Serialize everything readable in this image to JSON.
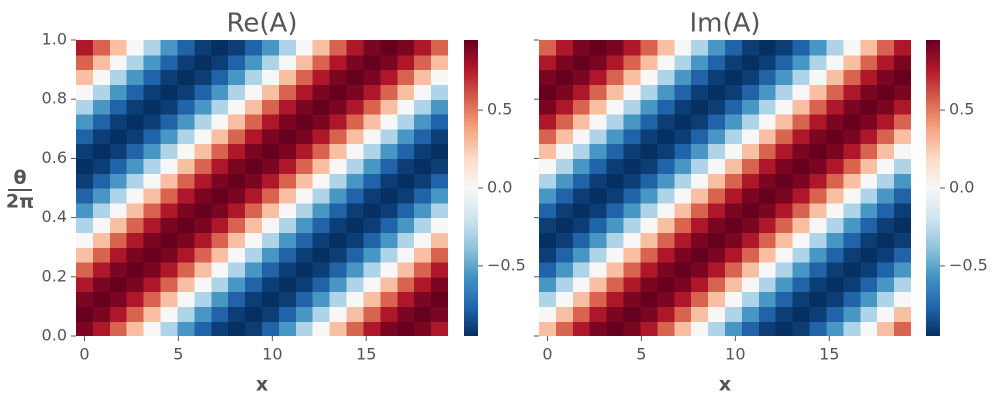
{
  "chart_data": [
    {
      "type": "heatmap",
      "title": "Re(A)",
      "xlabel": "x",
      "ylabel": [
        "θ",
        "2π"
      ],
      "colormap": "RdBu_r",
      "x": [
        0,
        0.9,
        1.8,
        2.7,
        3.6,
        4.5,
        5.4,
        6.3,
        7.2,
        8.1,
        9,
        9.9,
        10.8,
        11.7,
        12.6,
        13.5,
        14.4,
        15.3,
        16.2,
        17.1,
        18,
        18.9
      ],
      "y": [
        0.025,
        0.075,
        0.125,
        0.175,
        0.225,
        0.275,
        0.325,
        0.375,
        0.425,
        0.475,
        0.525,
        0.575,
        0.625,
        0.675,
        0.725,
        0.775,
        0.825,
        0.875,
        0.925,
        0.975
      ],
      "z": [
        [
          0.9,
          0.77,
          0.56,
          0.29,
          0,
          -0.29,
          -0.56,
          -0.77,
          -0.9,
          -0.95,
          -0.9,
          -0.77,
          -0.56,
          -0.29,
          0,
          0.29,
          0.56,
          0.77,
          0.9,
          0.95,
          0.9,
          0.77
        ],
        [
          0.95,
          0.9,
          0.77,
          0.56,
          0.29,
          0,
          -0.29,
          -0.56,
          -0.77,
          -0.9,
          -0.95,
          -0.9,
          -0.77,
          -0.56,
          -0.29,
          0,
          0.29,
          0.56,
          0.77,
          0.9,
          0.95,
          0.9
        ],
        [
          0.9,
          0.95,
          0.9,
          0.77,
          0.56,
          0.29,
          0,
          -0.29,
          -0.56,
          -0.77,
          -0.9,
          -0.95,
          -0.9,
          -0.77,
          -0.56,
          -0.29,
          0,
          0.29,
          0.56,
          0.77,
          0.9,
          0.95
        ],
        [
          0.77,
          0.9,
          0.95,
          0.9,
          0.77,
          0.56,
          0.29,
          0,
          -0.29,
          -0.56,
          -0.77,
          -0.9,
          -0.95,
          -0.9,
          -0.77,
          -0.56,
          -0.29,
          0,
          0.29,
          0.56,
          0.77,
          0.9
        ],
        [
          0.56,
          0.77,
          0.9,
          0.95,
          0.9,
          0.77,
          0.56,
          0.29,
          0,
          -0.29,
          -0.56,
          -0.77,
          -0.9,
          -0.95,
          -0.9,
          -0.77,
          -0.56,
          -0.29,
          0,
          0.29,
          0.56,
          0.77
        ],
        [
          0.29,
          0.56,
          0.77,
          0.9,
          0.95,
          0.9,
          0.77,
          0.56,
          0.29,
          0,
          -0.29,
          -0.56,
          -0.77,
          -0.9,
          -0.95,
          -0.9,
          -0.77,
          -0.56,
          -0.29,
          0,
          0.29,
          0.56
        ],
        [
          0,
          0.29,
          0.56,
          0.77,
          0.9,
          0.95,
          0.9,
          0.77,
          0.56,
          0.29,
          0,
          -0.29,
          -0.56,
          -0.77,
          -0.9,
          -0.95,
          -0.9,
          -0.77,
          -0.56,
          -0.29,
          0,
          0.29
        ],
        [
          -0.29,
          0,
          0.29,
          0.56,
          0.77,
          0.9,
          0.95,
          0.9,
          0.77,
          0.56,
          0.29,
          0,
          -0.29,
          -0.56,
          -0.77,
          -0.9,
          -0.95,
          -0.9,
          -0.77,
          -0.56,
          -0.29,
          0
        ],
        [
          -0.56,
          -0.29,
          0,
          0.29,
          0.56,
          0.77,
          0.9,
          0.95,
          0.9,
          0.77,
          0.56,
          0.29,
          0,
          -0.29,
          -0.56,
          -0.77,
          -0.9,
          -0.95,
          -0.9,
          -0.77,
          -0.56,
          -0.29
        ],
        [
          -0.77,
          -0.56,
          -0.29,
          0,
          0.29,
          0.56,
          0.77,
          0.9,
          0.95,
          0.9,
          0.77,
          0.56,
          0.29,
          0,
          -0.29,
          -0.56,
          -0.77,
          -0.9,
          -0.95,
          -0.9,
          -0.77,
          -0.56
        ],
        [
          -0.9,
          -0.77,
          -0.56,
          -0.29,
          0,
          0.29,
          0.56,
          0.77,
          0.9,
          0.95,
          0.9,
          0.77,
          0.56,
          0.29,
          0,
          -0.29,
          -0.56,
          -0.77,
          -0.9,
          -0.95,
          -0.9,
          -0.77
        ],
        [
          -0.95,
          -0.9,
          -0.77,
          -0.56,
          -0.29,
          0,
          0.29,
          0.56,
          0.77,
          0.9,
          0.95,
          0.9,
          0.77,
          0.56,
          0.29,
          0,
          -0.29,
          -0.56,
          -0.77,
          -0.9,
          -0.95,
          -0.9
        ],
        [
          -0.9,
          -0.95,
          -0.9,
          -0.77,
          -0.56,
          -0.29,
          0,
          0.29,
          0.56,
          0.77,
          0.9,
          0.95,
          0.9,
          0.77,
          0.56,
          0.29,
          0,
          -0.29,
          -0.56,
          -0.77,
          -0.9,
          -0.95
        ],
        [
          -0.77,
          -0.9,
          -0.95,
          -0.9,
          -0.77,
          -0.56,
          -0.29,
          0,
          0.29,
          0.56,
          0.77,
          0.9,
          0.95,
          0.9,
          0.77,
          0.56,
          0.29,
          0,
          -0.29,
          -0.56,
          -0.77,
          -0.9
        ],
        [
          -0.56,
          -0.77,
          -0.9,
          -0.95,
          -0.9,
          -0.77,
          -0.56,
          -0.29,
          0,
          0.29,
          0.56,
          0.77,
          0.9,
          0.95,
          0.9,
          0.77,
          0.56,
          0.29,
          0,
          -0.29,
          -0.56,
          -0.77
        ],
        [
          -0.29,
          -0.56,
          -0.77,
          -0.9,
          -0.95,
          -0.9,
          -0.77,
          -0.56,
          -0.29,
          0,
          0.29,
          0.56,
          0.77,
          0.9,
          0.95,
          0.9,
          0.77,
          0.56,
          0.29,
          0,
          -0.29,
          -0.56
        ],
        [
          0,
          -0.29,
          -0.56,
          -0.77,
          -0.9,
          -0.95,
          -0.9,
          -0.77,
          -0.56,
          -0.29,
          0,
          0.29,
          0.56,
          0.77,
          0.9,
          0.95,
          0.9,
          0.77,
          0.56,
          0.29,
          0,
          -0.29
        ],
        [
          0.29,
          0,
          -0.29,
          -0.56,
          -0.77,
          -0.9,
          -0.95,
          -0.9,
          -0.77,
          -0.56,
          -0.29,
          0,
          0.29,
          0.56,
          0.77,
          0.9,
          0.95,
          0.9,
          0.77,
          0.56,
          0.29,
          0
        ],
        [
          0.56,
          0.29,
          0,
          -0.29,
          -0.56,
          -0.77,
          -0.9,
          -0.95,
          -0.9,
          -0.77,
          -0.56,
          -0.29,
          0,
          0.29,
          0.56,
          0.77,
          0.9,
          0.95,
          0.9,
          0.77,
          0.56,
          0.29
        ],
        [
          0.77,
          0.56,
          0.29,
          0,
          -0.29,
          -0.56,
          -0.77,
          -0.9,
          -0.95,
          -0.9,
          -0.77,
          -0.56,
          -0.29,
          0,
          0.29,
          0.56,
          0.77,
          0.9,
          0.95,
          0.9,
          0.77,
          0.56
        ]
      ],
      "xlim": [
        -0.45,
        19.35
      ],
      "xticks": [
        0,
        5,
        10,
        15
      ],
      "ylim": [
        0,
        1
      ],
      "yticks": [
        {
          "value": 0,
          "label": "0.0"
        },
        0.2,
        0.4,
        0.6,
        0.8,
        {
          "value": 1,
          "label": "1.0"
        }
      ],
      "ytick_labels": true,
      "zlim": [
        -0.95,
        0.95
      ],
      "zticks": [
        {
          "value": -0.5,
          "label": "−0.5"
        },
        {
          "value": 0,
          "label": "0.0"
        },
        0.5
      ]
    },
    {
      "type": "heatmap",
      "title": "Im(A)",
      "xlabel": "x",
      "colormap": "RdBu_r",
      "x": [
        0,
        0.9,
        1.8,
        2.7,
        3.6,
        4.5,
        5.4,
        6.3,
        7.2,
        8.1,
        9,
        9.9,
        10.8,
        11.7,
        12.6,
        13.5,
        14.4,
        15.3,
        16.2,
        17.1,
        18,
        18.9
      ],
      "y": [
        0.025,
        0.075,
        0.125,
        0.175,
        0.225,
        0.275,
        0.325,
        0.375,
        0.425,
        0.475,
        0.525,
        0.575,
        0.625,
        0.675,
        0.725,
        0.775,
        0.825,
        0.875,
        0.925,
        0.975
      ],
      "z": [
        [
          0.29,
          0.56,
          0.77,
          0.9,
          0.95,
          0.9,
          0.77,
          0.56,
          0.29,
          0,
          -0.29,
          -0.56,
          -0.77,
          -0.9,
          -0.95,
          -0.9,
          -0.77,
          -0.56,
          -0.29,
          0,
          0.29,
          0.56
        ],
        [
          0,
          0.29,
          0.56,
          0.77,
          0.9,
          0.95,
          0.9,
          0.77,
          0.56,
          0.29,
          0,
          -0.29,
          -0.56,
          -0.77,
          -0.9,
          -0.95,
          -0.9,
          -0.77,
          -0.56,
          -0.29,
          0,
          0.29
        ],
        [
          -0.29,
          0,
          0.29,
          0.56,
          0.77,
          0.9,
          0.95,
          0.9,
          0.77,
          0.56,
          0.29,
          0,
          -0.29,
          -0.56,
          -0.77,
          -0.9,
          -0.95,
          -0.9,
          -0.77,
          -0.56,
          -0.29,
          0
        ],
        [
          -0.56,
          -0.29,
          0,
          0.29,
          0.56,
          0.77,
          0.9,
          0.95,
          0.9,
          0.77,
          0.56,
          0.29,
          0,
          -0.29,
          -0.56,
          -0.77,
          -0.9,
          -0.95,
          -0.9,
          -0.77,
          -0.56,
          -0.29
        ],
        [
          -0.77,
          -0.56,
          -0.29,
          0,
          0.29,
          0.56,
          0.77,
          0.9,
          0.95,
          0.9,
          0.77,
          0.56,
          0.29,
          0,
          -0.29,
          -0.56,
          -0.77,
          -0.9,
          -0.95,
          -0.9,
          -0.77,
          -0.56
        ],
        [
          -0.9,
          -0.77,
          -0.56,
          -0.29,
          0,
          0.29,
          0.56,
          0.77,
          0.9,
          0.95,
          0.9,
          0.77,
          0.56,
          0.29,
          0,
          -0.29,
          -0.56,
          -0.77,
          -0.9,
          -0.95,
          -0.9,
          -0.77
        ],
        [
          -0.95,
          -0.9,
          -0.77,
          -0.56,
          -0.29,
          0,
          0.29,
          0.56,
          0.77,
          0.9,
          0.95,
          0.9,
          0.77,
          0.56,
          0.29,
          0,
          -0.29,
          -0.56,
          -0.77,
          -0.9,
          -0.95,
          -0.9
        ],
        [
          -0.9,
          -0.95,
          -0.9,
          -0.77,
          -0.56,
          -0.29,
          0,
          0.29,
          0.56,
          0.77,
          0.9,
          0.95,
          0.9,
          0.77,
          0.56,
          0.29,
          0,
          -0.29,
          -0.56,
          -0.77,
          -0.9,
          -0.95
        ],
        [
          -0.77,
          -0.9,
          -0.95,
          -0.9,
          -0.77,
          -0.56,
          -0.29,
          0,
          0.29,
          0.56,
          0.77,
          0.9,
          0.95,
          0.9,
          0.77,
          0.56,
          0.29,
          0,
          -0.29,
          -0.56,
          -0.77,
          -0.9
        ],
        [
          -0.56,
          -0.77,
          -0.9,
          -0.95,
          -0.9,
          -0.77,
          -0.56,
          -0.29,
          0,
          0.29,
          0.56,
          0.77,
          0.9,
          0.95,
          0.9,
          0.77,
          0.56,
          0.29,
          0,
          -0.29,
          -0.56,
          -0.77
        ],
        [
          -0.29,
          -0.56,
          -0.77,
          -0.9,
          -0.95,
          -0.9,
          -0.77,
          -0.56,
          -0.29,
          0,
          0.29,
          0.56,
          0.77,
          0.9,
          0.95,
          0.9,
          0.77,
          0.56,
          0.29,
          0,
          -0.29,
          -0.56
        ],
        [
          0,
          -0.29,
          -0.56,
          -0.77,
          -0.9,
          -0.95,
          -0.9,
          -0.77,
          -0.56,
          -0.29,
          0,
          0.29,
          0.56,
          0.77,
          0.9,
          0.95,
          0.9,
          0.77,
          0.56,
          0.29,
          0,
          -0.29
        ],
        [
          0.29,
          0,
          -0.29,
          -0.56,
          -0.77,
          -0.9,
          -0.95,
          -0.9,
          -0.77,
          -0.56,
          -0.29,
          0,
          0.29,
          0.56,
          0.77,
          0.9,
          0.95,
          0.9,
          0.77,
          0.56,
          0.29,
          0
        ],
        [
          0.56,
          0.29,
          0,
          -0.29,
          -0.56,
          -0.77,
          -0.9,
          -0.95,
          -0.9,
          -0.77,
          -0.56,
          -0.29,
          0,
          0.29,
          0.56,
          0.77,
          0.9,
          0.95,
          0.9,
          0.77,
          0.56,
          0.29
        ],
        [
          0.77,
          0.56,
          0.29,
          0,
          -0.29,
          -0.56,
          -0.77,
          -0.9,
          -0.95,
          -0.9,
          -0.77,
          -0.56,
          -0.29,
          0,
          0.29,
          0.56,
          0.77,
          0.9,
          0.95,
          0.9,
          0.77,
          0.56
        ],
        [
          0.9,
          0.77,
          0.56,
          0.29,
          0,
          -0.29,
          -0.56,
          -0.77,
          -0.9,
          -0.95,
          -0.9,
          -0.77,
          -0.56,
          -0.29,
          0,
          0.29,
          0.56,
          0.77,
          0.9,
          0.95,
          0.9,
          0.77
        ],
        [
          0.95,
          0.9,
          0.77,
          0.56,
          0.29,
          0,
          -0.29,
          -0.56,
          -0.77,
          -0.9,
          -0.95,
          -0.9,
          -0.77,
          -0.56,
          -0.29,
          0,
          0.29,
          0.56,
          0.77,
          0.9,
          0.95,
          0.9
        ],
        [
          0.9,
          0.95,
          0.9,
          0.77,
          0.56,
          0.29,
          0,
          -0.29,
          -0.56,
          -0.77,
          -0.9,
          -0.95,
          -0.9,
          -0.77,
          -0.56,
          -0.29,
          0,
          0.29,
          0.56,
          0.77,
          0.9,
          0.95
        ],
        [
          0.77,
          0.9,
          0.95,
          0.9,
          0.77,
          0.56,
          0.29,
          0,
          -0.29,
          -0.56,
          -0.77,
          -0.9,
          -0.95,
          -0.9,
          -0.77,
          -0.56,
          -0.29,
          0,
          0.29,
          0.56,
          0.77,
          0.9
        ],
        [
          0.56,
          0.77,
          0.9,
          0.95,
          0.9,
          0.77,
          0.56,
          0.29,
          0,
          -0.29,
          -0.56,
          -0.77,
          -0.9,
          -0.95,
          -0.9,
          -0.77,
          -0.56,
          -0.29,
          0,
          0.29,
          0.56,
          0.77
        ]
      ],
      "xlim": [
        -0.45,
        19.35
      ],
      "xticks": [
        0,
        5,
        10,
        15
      ],
      "ylim": [
        0,
        1
      ],
      "yticks": [
        {
          "value": 0,
          "label": "0.0"
        },
        0.2,
        0.4,
        0.6,
        0.8,
        {
          "value": 1,
          "label": "1.0"
        }
      ],
      "ytick_labels": false,
      "zlim": [
        -0.95,
        0.95
      ],
      "zticks": [
        {
          "value": -0.5,
          "label": "−0.5"
        },
        {
          "value": 0,
          "label": "0.0"
        },
        0.5
      ]
    }
  ]
}
